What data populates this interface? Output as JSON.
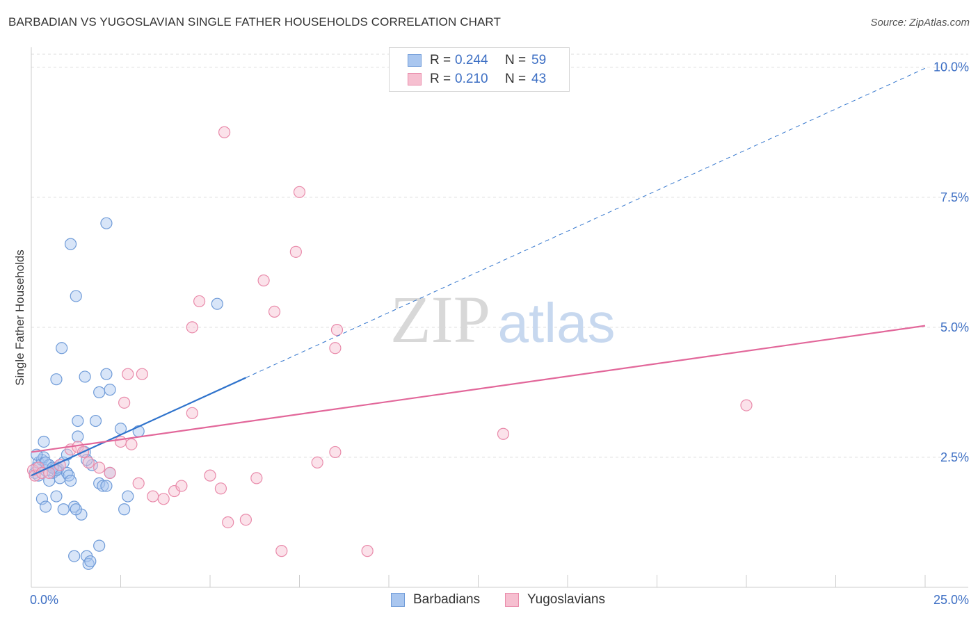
{
  "title": "BARBADIAN VS YUGOSLAVIAN SINGLE FATHER HOUSEHOLDS CORRELATION CHART",
  "source": "Source: ZipAtlas.com",
  "watermark": {
    "part1": "ZIP",
    "part2": "atlas"
  },
  "legend_top": [
    {
      "r_label": "R =",
      "r_value": "0.244",
      "n_label": "N =",
      "n_value": "59"
    },
    {
      "r_label": "R =",
      "r_value": "0.210",
      "n_label": "N =",
      "n_value": "43"
    }
  ],
  "legend_bottom": [
    "Barbadians",
    "Yugoslavians"
  ],
  "colors": {
    "blue_fill": "#a9c6ef",
    "blue_stroke": "#6f9bd8",
    "blue_line": "#2f73cc",
    "pink_fill": "#f6bfd0",
    "pink_stroke": "#e98aaa",
    "pink_line": "#e2679a",
    "tick_label": "#3d6fc4",
    "grid": "#dddddd"
  },
  "chart_data": {
    "type": "scatter",
    "title": "BARBADIAN VS YUGOSLAVIAN SINGLE FATHER HOUSEHOLDS CORRELATION CHART",
    "xlabel": "",
    "ylabel": "Single Father Households",
    "xlim": [
      0,
      25
    ],
    "ylim": [
      0,
      10.25
    ],
    "x_tick_labels": [
      "0.0%",
      "25.0%"
    ],
    "y_ticks": [
      2.5,
      5.0,
      7.5,
      10.0
    ],
    "y_tick_labels": [
      "2.5%",
      "5.0%",
      "7.5%",
      "10.0%"
    ],
    "series": [
      {
        "name": "Barbadians",
        "r": 0.244,
        "n": 59,
        "trend": {
          "x0": 0,
          "y0": 2.15,
          "x1": 6.0,
          "y1": 4.03,
          "dashed_to_x": 25,
          "dashed_to_y": 9.98
        },
        "points": [
          [
            0.1,
            2.2
          ],
          [
            0.15,
            2.3
          ],
          [
            0.2,
            2.4
          ],
          [
            0.2,
            2.15
          ],
          [
            0.3,
            2.45
          ],
          [
            0.35,
            2.5
          ],
          [
            0.4,
            2.25
          ],
          [
            0.5,
            2.35
          ],
          [
            0.6,
            2.2
          ],
          [
            0.7,
            2.3
          ],
          [
            0.75,
            2.28
          ],
          [
            0.8,
            2.1
          ],
          [
            0.9,
            2.4
          ],
          [
            1.0,
            2.2
          ],
          [
            1.05,
            2.15
          ],
          [
            1.1,
            2.05
          ],
          [
            0.5,
            2.05
          ],
          [
            0.3,
            1.7
          ],
          [
            0.4,
            1.55
          ],
          [
            0.7,
            1.75
          ],
          [
            0.9,
            1.5
          ],
          [
            1.2,
            1.55
          ],
          [
            1.4,
            1.4
          ],
          [
            1.25,
            1.5
          ],
          [
            0.35,
            2.8
          ],
          [
            0.7,
            2.25
          ],
          [
            1.3,
            2.9
          ],
          [
            1.5,
            2.6
          ],
          [
            1.7,
            2.35
          ],
          [
            1.9,
            2.0
          ],
          [
            2.2,
            2.2
          ],
          [
            2.0,
            1.95
          ],
          [
            2.1,
            1.95
          ],
          [
            2.6,
            1.5
          ],
          [
            2.7,
            1.75
          ],
          [
            0.7,
            4.0
          ],
          [
            0.85,
            4.6
          ],
          [
            1.5,
            4.05
          ],
          [
            1.9,
            3.75
          ],
          [
            2.2,
            3.8
          ],
          [
            1.3,
            3.2
          ],
          [
            1.8,
            3.2
          ],
          [
            2.1,
            4.1
          ],
          [
            2.5,
            3.05
          ],
          [
            3.0,
            3.0
          ],
          [
            1.1,
            6.6
          ],
          [
            1.25,
            5.6
          ],
          [
            2.1,
            7.0
          ],
          [
            5.2,
            5.45
          ],
          [
            1.2,
            0.6
          ],
          [
            1.55,
            0.6
          ],
          [
            1.6,
            0.45
          ],
          [
            1.65,
            0.5
          ],
          [
            1.9,
            0.8
          ],
          [
            0.15,
            2.55
          ],
          [
            0.4,
            2.4
          ],
          [
            1.0,
            2.55
          ],
          [
            0.6,
            2.3
          ],
          [
            1.55,
            2.45
          ]
        ]
      },
      {
        "name": "Yugoslavians",
        "r": 0.21,
        "n": 43,
        "trend": {
          "x0": 0,
          "y0": 2.6,
          "x1": 25,
          "y1": 5.03
        },
        "points": [
          [
            0.05,
            2.25
          ],
          [
            0.1,
            2.15
          ],
          [
            0.2,
            2.3
          ],
          [
            0.3,
            2.2
          ],
          [
            0.5,
            2.2
          ],
          [
            0.8,
            2.35
          ],
          [
            1.1,
            2.65
          ],
          [
            1.3,
            2.7
          ],
          [
            1.45,
            2.6
          ],
          [
            1.6,
            2.4
          ],
          [
            1.9,
            2.3
          ],
          [
            2.2,
            2.2
          ],
          [
            2.5,
            2.8
          ],
          [
            2.8,
            2.75
          ],
          [
            3.0,
            2.0
          ],
          [
            3.4,
            1.75
          ],
          [
            3.7,
            1.7
          ],
          [
            4.0,
            1.85
          ],
          [
            4.2,
            1.95
          ],
          [
            2.6,
            3.55
          ],
          [
            3.1,
            4.1
          ],
          [
            2.7,
            4.1
          ],
          [
            4.5,
            3.35
          ],
          [
            5.0,
            2.15
          ],
          [
            5.3,
            1.9
          ],
          [
            5.5,
            1.25
          ],
          [
            6.0,
            1.3
          ],
          [
            6.3,
            2.1
          ],
          [
            7.0,
            0.7
          ],
          [
            8.0,
            2.4
          ],
          [
            8.5,
            2.6
          ],
          [
            9.4,
            0.7
          ],
          [
            4.5,
            5.0
          ],
          [
            4.7,
            5.5
          ],
          [
            5.4,
            8.75
          ],
          [
            6.5,
            5.9
          ],
          [
            6.8,
            5.3
          ],
          [
            7.4,
            6.45
          ],
          [
            7.5,
            7.6
          ],
          [
            8.5,
            4.6
          ],
          [
            8.55,
            4.95
          ],
          [
            13.2,
            2.95
          ],
          [
            20.0,
            3.5
          ]
        ]
      }
    ]
  }
}
